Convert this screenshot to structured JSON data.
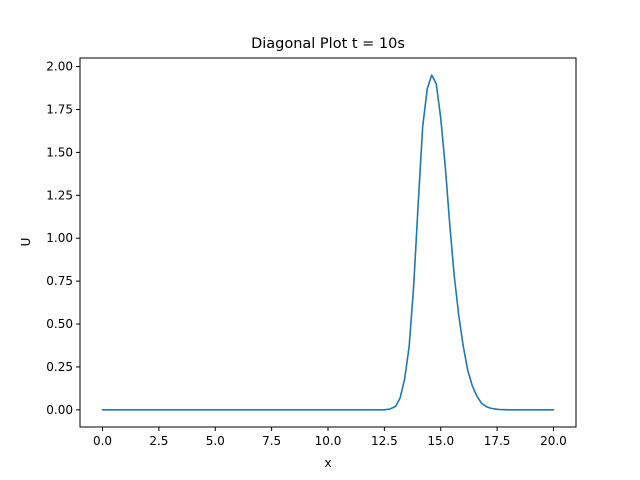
{
  "chart_data": {
    "type": "line",
    "title": "Diagonal Plot t = 10s",
    "xlabel": "x",
    "ylabel": "U",
    "xlim": [
      -1.0,
      21.0
    ],
    "ylim": [
      -0.1,
      2.05
    ],
    "xticks": [
      0.0,
      2.5,
      5.0,
      7.5,
      10.0,
      12.5,
      15.0,
      17.5,
      20.0
    ],
    "xtick_labels": [
      "0.0",
      "2.5",
      "5.0",
      "7.5",
      "10.0",
      "12.5",
      "15.0",
      "17.5",
      "20.0"
    ],
    "yticks": [
      0.0,
      0.25,
      0.5,
      0.75,
      1.0,
      1.25,
      1.5,
      1.75,
      2.0
    ],
    "ytick_labels": [
      "0.00",
      "0.25",
      "0.50",
      "0.75",
      "1.00",
      "1.25",
      "1.50",
      "1.75",
      "2.00"
    ],
    "grid": false,
    "series": [
      {
        "color": "#1f77b4",
        "x": [
          0.0,
          0.5,
          1.0,
          1.5,
          2.0,
          2.5,
          3.0,
          3.5,
          4.0,
          4.5,
          5.0,
          5.5,
          6.0,
          6.5,
          7.0,
          7.5,
          8.0,
          8.5,
          9.0,
          9.5,
          10.0,
          10.5,
          11.0,
          11.5,
          12.0,
          12.5,
          12.75,
          13.0,
          13.2,
          13.4,
          13.6,
          13.8,
          14.0,
          14.2,
          14.4,
          14.6,
          14.8,
          15.0,
          15.2,
          15.4,
          15.6,
          15.8,
          16.0,
          16.2,
          16.4,
          16.6,
          16.8,
          17.0,
          17.2,
          17.4,
          17.6,
          17.8,
          18.0,
          18.5,
          19.0,
          19.5,
          20.0
        ],
        "y": [
          0.0,
          0.0,
          0.0,
          0.0,
          0.0,
          0.0,
          0.0,
          0.0,
          0.0,
          0.0,
          0.0,
          0.0,
          0.0,
          0.0,
          0.0,
          0.0,
          0.0,
          0.0,
          0.0,
          0.0,
          0.0,
          0.0,
          0.0,
          0.0,
          0.0,
          0.0,
          0.005,
          0.02,
          0.07,
          0.18,
          0.37,
          0.72,
          1.2,
          1.65,
          1.87,
          1.95,
          1.9,
          1.7,
          1.42,
          1.08,
          0.78,
          0.55,
          0.37,
          0.23,
          0.14,
          0.08,
          0.04,
          0.02,
          0.01,
          0.005,
          0.002,
          0.001,
          0.0,
          0.0,
          0.0,
          0.0,
          0.0
        ]
      }
    ]
  }
}
